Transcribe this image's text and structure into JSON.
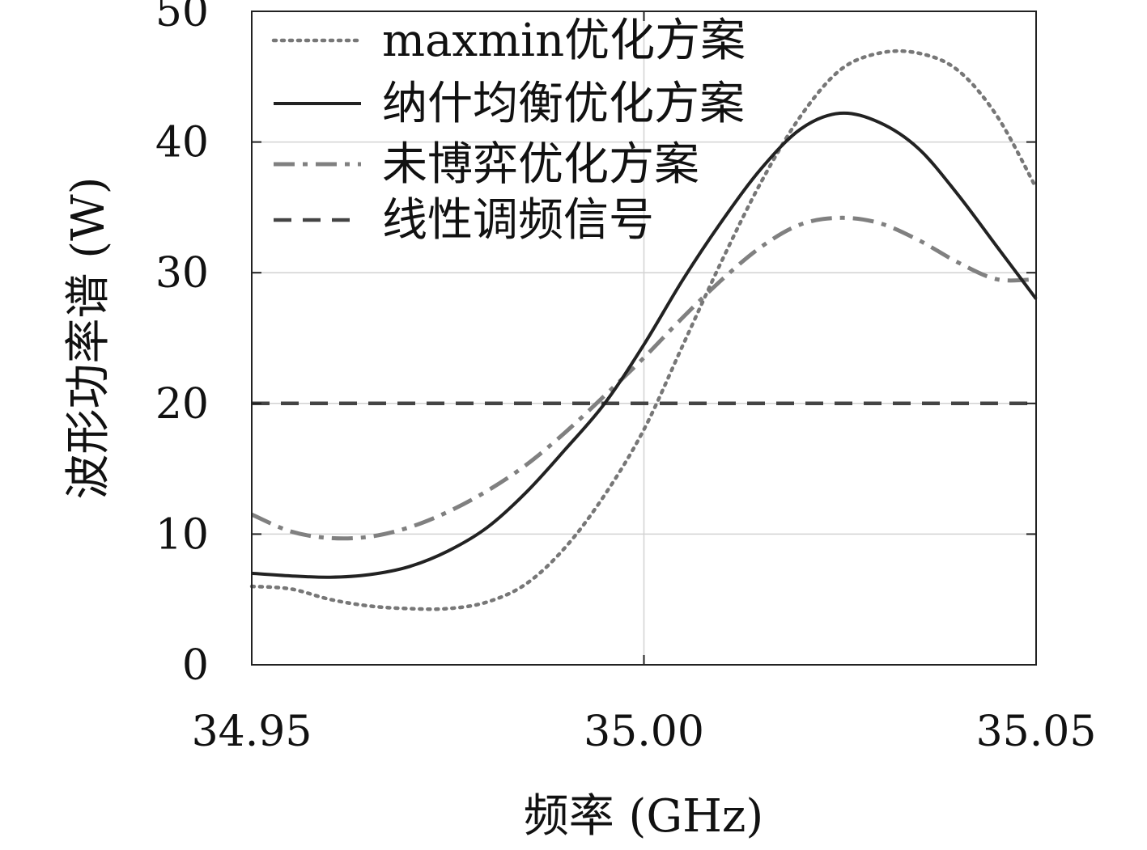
{
  "chart_data": {
    "type": "line",
    "xlabel": "频率 (GHz)",
    "ylabel": "波形功率谱 (W)",
    "xlim": [
      34.95,
      35.05
    ],
    "ylim": [
      0,
      50
    ],
    "xticks": [
      34.95,
      35.0,
      35.05
    ],
    "xtick_labels": [
      "34.95",
      "35.00",
      "35.05"
    ],
    "yticks": [
      0,
      10,
      20,
      30,
      40,
      50
    ],
    "ytick_labels": [
      "0",
      "10",
      "20",
      "30",
      "40",
      "50"
    ],
    "grid": true,
    "legend_position": "top-left",
    "x": [
      34.95,
      34.955,
      34.96,
      34.965,
      34.97,
      34.975,
      34.98,
      34.985,
      34.99,
      34.995,
      35.0,
      35.005,
      35.01,
      35.015,
      35.02,
      35.025,
      35.03,
      35.035,
      35.04,
      35.045,
      35.05
    ],
    "series": [
      {
        "name": "maxmin优化方案",
        "style": "dotted",
        "color": "#777777",
        "values": [
          6.0,
          5.8,
          5.0,
          4.5,
          4.3,
          4.3,
          4.8,
          6.2,
          9.0,
          13.0,
          18.0,
          24.5,
          31.0,
          37.0,
          42.0,
          45.5,
          46.8,
          46.8,
          45.5,
          42.0,
          36.5
        ]
      },
      {
        "name": "纳什均衡优化方案",
        "style": "solid",
        "color": "#222222",
        "values": [
          7.0,
          6.8,
          6.7,
          6.9,
          7.5,
          8.7,
          10.5,
          13.2,
          16.5,
          20.0,
          24.5,
          29.5,
          34.0,
          38.0,
          41.0,
          42.2,
          41.5,
          39.5,
          36.0,
          32.0,
          28.0
        ]
      },
      {
        "name": "未博弈优化方案",
        "style": "dash-dot",
        "color": "#808080",
        "values": [
          11.5,
          10.2,
          9.7,
          9.8,
          10.5,
          11.7,
          13.3,
          15.3,
          17.8,
          20.6,
          23.5,
          26.6,
          29.5,
          32.0,
          33.7,
          34.2,
          33.8,
          32.5,
          30.8,
          29.5,
          29.5
        ]
      },
      {
        "name": "线性调频信号",
        "style": "dashed",
        "color": "#444444",
        "values": [
          20,
          20,
          20,
          20,
          20,
          20,
          20,
          20,
          20,
          20,
          20,
          20,
          20,
          20,
          20,
          20,
          20,
          20,
          20,
          20,
          20
        ]
      }
    ]
  }
}
